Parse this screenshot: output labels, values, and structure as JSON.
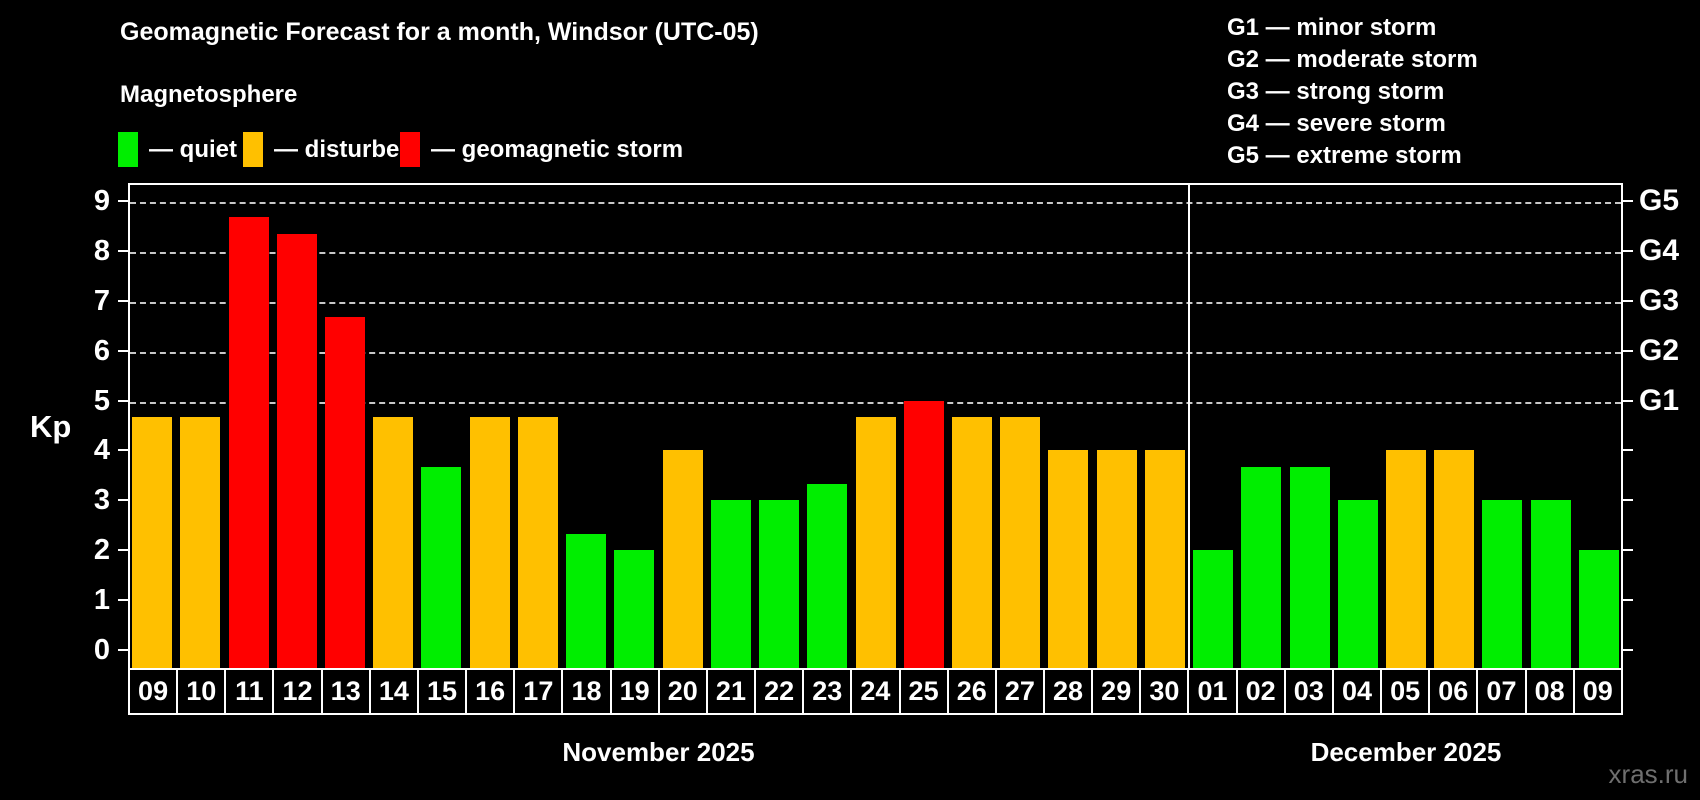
{
  "title": "Geomagnetic Forecast for a month, Windsor (UTC-05)",
  "subtitle": "Magnetosphere",
  "legend": {
    "quiet": "— quiet",
    "disturbed": "— disturbed",
    "storm": "— geomagnetic storm"
  },
  "g_legend": [
    "G1 — minor storm",
    "G2 — moderate storm",
    "G3 — strong storm",
    "G4 — severe storm",
    "G5 — extreme storm"
  ],
  "watermark": "xras.ru",
  "chart_data": {
    "type": "bar",
    "title": "Geomagnetic Forecast for a month, Windsor (UTC-05)",
    "ylabel": "Kp",
    "ylim": [
      0,
      9.5
    ],
    "yticks": [
      0,
      1,
      2,
      3,
      4,
      5,
      6,
      7,
      8,
      9
    ],
    "gridlines_at": [
      5,
      6,
      7,
      8,
      9
    ],
    "grid": "dashed, only at storm levels 5-9",
    "legend_position": "top",
    "right_axis_labels": [
      {
        "value": 5,
        "label": "G1"
      },
      {
        "value": 6,
        "label": "G2"
      },
      {
        "value": 7,
        "label": "G3"
      },
      {
        "value": 8,
        "label": "G4"
      },
      {
        "value": 9,
        "label": "G5"
      }
    ],
    "status_colors": {
      "quiet": "#00ee00",
      "disturbed": "#ffc000",
      "storm": "#ff0000"
    },
    "background_color": "#000000",
    "months": [
      {
        "label": "November 2025",
        "points": [
          {
            "day": "09",
            "kp": 4.67,
            "status": "disturbed"
          },
          {
            "day": "10",
            "kp": 4.67,
            "status": "disturbed"
          },
          {
            "day": "11",
            "kp": 8.67,
            "status": "storm"
          },
          {
            "day": "12",
            "kp": 8.33,
            "status": "storm"
          },
          {
            "day": "13",
            "kp": 6.67,
            "status": "storm"
          },
          {
            "day": "14",
            "kp": 4.67,
            "status": "disturbed"
          },
          {
            "day": "15",
            "kp": 3.67,
            "status": "quiet"
          },
          {
            "day": "16",
            "kp": 4.67,
            "status": "disturbed"
          },
          {
            "day": "17",
            "kp": 4.67,
            "status": "disturbed"
          },
          {
            "day": "18",
            "kp": 2.33,
            "status": "quiet"
          },
          {
            "day": "19",
            "kp": 2.0,
            "status": "quiet"
          },
          {
            "day": "20",
            "kp": 4.0,
            "status": "disturbed"
          },
          {
            "day": "21",
            "kp": 3.0,
            "status": "quiet"
          },
          {
            "day": "22",
            "kp": 3.0,
            "status": "quiet"
          },
          {
            "day": "23",
            "kp": 3.33,
            "status": "quiet"
          },
          {
            "day": "24",
            "kp": 4.67,
            "status": "disturbed"
          },
          {
            "day": "25",
            "kp": 5.0,
            "status": "storm"
          },
          {
            "day": "26",
            "kp": 4.67,
            "status": "disturbed"
          },
          {
            "day": "27",
            "kp": 4.67,
            "status": "disturbed"
          },
          {
            "day": "28",
            "kp": 4.0,
            "status": "disturbed"
          },
          {
            "day": "29",
            "kp": 4.0,
            "status": "disturbed"
          },
          {
            "day": "30",
            "kp": 4.0,
            "status": "disturbed"
          }
        ]
      },
      {
        "label": "December 2025",
        "points": [
          {
            "day": "01",
            "kp": 2.0,
            "status": "quiet"
          },
          {
            "day": "02",
            "kp": 3.67,
            "status": "quiet"
          },
          {
            "day": "03",
            "kp": 3.67,
            "status": "quiet"
          },
          {
            "day": "04",
            "kp": 3.0,
            "status": "quiet"
          },
          {
            "day": "05",
            "kp": 4.0,
            "status": "disturbed"
          },
          {
            "day": "06",
            "kp": 4.0,
            "status": "disturbed"
          },
          {
            "day": "07",
            "kp": 3.0,
            "status": "quiet"
          },
          {
            "day": "08",
            "kp": 3.0,
            "status": "quiet"
          },
          {
            "day": "09",
            "kp": 2.0,
            "status": "quiet"
          }
        ]
      }
    ]
  }
}
